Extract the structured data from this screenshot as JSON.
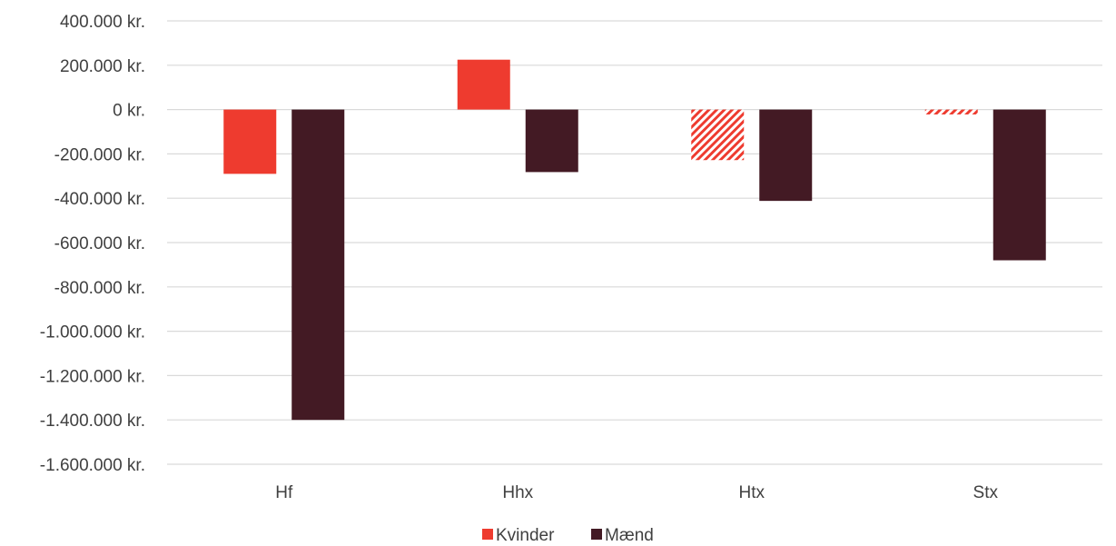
{
  "chart_data": {
    "type": "bar",
    "categories": [
      "Hf",
      "Hhx",
      "Htx",
      "Stx"
    ],
    "series": [
      {
        "name": "Kvinder",
        "color": "#ee3b2f",
        "values": [
          -290000,
          225000,
          -228000,
          -22000
        ],
        "hatched": [
          false,
          false,
          true,
          true
        ]
      },
      {
        "name": "Mænd",
        "color": "#431a24",
        "values": [
          -1400000,
          -282000,
          -412000,
          -680000
        ],
        "hatched": [
          false,
          false,
          false,
          false
        ]
      }
    ],
    "ylim": [
      -1600000,
      400000
    ],
    "yticks": [
      400000,
      200000,
      0,
      -200000,
      -400000,
      -600000,
      -800000,
      -1000000,
      -1200000,
      -1400000,
      -1600000
    ],
    "ytick_labels": [
      "400.000 kr.",
      "200.000 kr.",
      "0 kr.",
      "-200.000 kr.",
      "-400.000 kr.",
      "-600.000 kr.",
      "-800.000 kr.",
      "-1.000.000 kr.",
      "-1.200.000 kr.",
      "-1.400.000 kr.",
      "-1.600.000 kr."
    ],
    "grid": true,
    "legend_position": "bottom"
  }
}
